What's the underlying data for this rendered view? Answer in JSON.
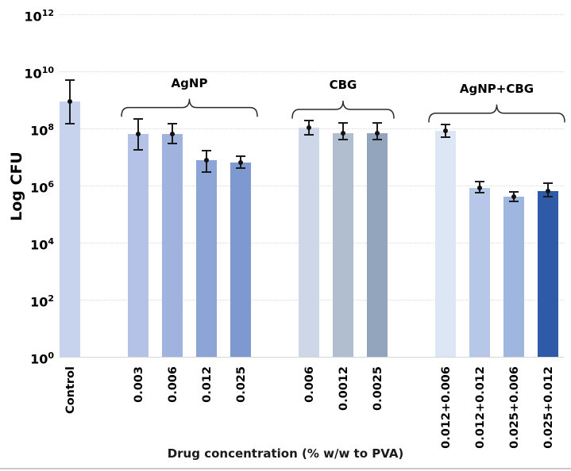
{
  "chart_data": {
    "type": "bar",
    "title": "",
    "ylabel": "Log CFU",
    "xlabel": "Drug concentration (% w/w to PVA)",
    "yscale": "log",
    "ylim": [
      1,
      1000000000000.0
    ],
    "ytick_exponents": [
      0,
      2,
      4,
      6,
      8,
      10,
      12
    ],
    "grid": "dotted-horizontal",
    "legend": null,
    "groups": [
      {
        "label": "",
        "brace": false,
        "bars": [
          {
            "category": "Control",
            "value": 870000000.0,
            "err_low": 150000000.0,
            "err_high": 5000000000.0,
            "color": "#c7d2ec"
          }
        ]
      },
      {
        "label": "AgNP",
        "brace": true,
        "bars": [
          {
            "category": "0.003",
            "value": 65000000.0,
            "err_low": 18000000.0,
            "err_high": 220000000.0,
            "color": "#b3c2e6"
          },
          {
            "category": "0.006",
            "value": 65000000.0,
            "err_low": 30000000.0,
            "err_high": 150000000.0,
            "color": "#a0b3de"
          },
          {
            "category": "0.012",
            "value": 7500000.0,
            "err_low": 3000000.0,
            "err_high": 17000000.0,
            "color": "#8da5d6"
          },
          {
            "category": "0.025",
            "value": 6500000.0,
            "err_low": 4000000.0,
            "err_high": 11000000.0,
            "color": "#7e99d0"
          }
        ]
      },
      {
        "label": "CBG",
        "brace": true,
        "bars": [
          {
            "category": "0.006",
            "value": 105000000.0,
            "err_low": 60000000.0,
            "err_high": 190000000.0,
            "color": "#cdd7e7"
          },
          {
            "category": "0.0012",
            "value": 70000000.0,
            "err_low": 40000000.0,
            "err_high": 160000000.0,
            "color": "#b0becf"
          },
          {
            "category": "0.0025",
            "value": 70000000.0,
            "err_low": 40000000.0,
            "err_high": 160000000.0,
            "color": "#93a5bc"
          }
        ]
      },
      {
        "label": "AgNP+CBG",
        "brace": true,
        "bars": [
          {
            "category": "0.012+0.006",
            "value": 80000000.0,
            "err_low": 50000000.0,
            "err_high": 140000000.0,
            "color": "#dde6f5"
          },
          {
            "category": "0.012+0.012",
            "value": 850000.0,
            "err_low": 550000.0,
            "err_high": 1400000.0,
            "color": "#b6c7e8"
          },
          {
            "category": "0.025+0.006",
            "value": 400000.0,
            "err_low": 280000.0,
            "err_high": 600000.0,
            "color": "#9fb6de"
          },
          {
            "category": "0.025+0.012",
            "value": 650000.0,
            "err_low": 400000.0,
            "err_high": 1200000.0,
            "color": "#2e5aa8"
          }
        ]
      }
    ]
  }
}
